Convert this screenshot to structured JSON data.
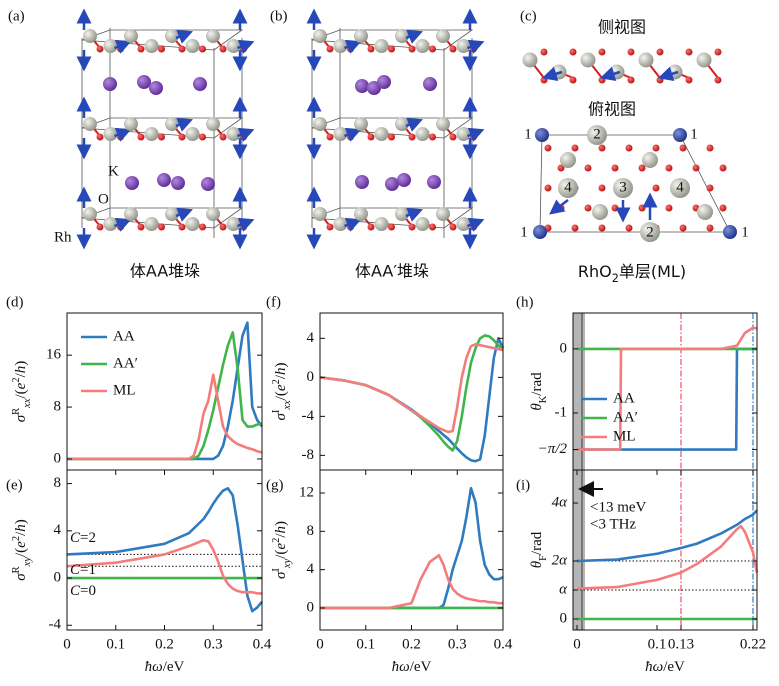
{
  "structures": {
    "a": {
      "label": "(a)",
      "caption": "体AA堆垛",
      "atoms": [
        "K",
        "O",
        "Rh"
      ]
    },
    "b": {
      "label": "(b)",
      "caption": "体AA′堆垛"
    },
    "c": {
      "label": "(c)",
      "caption": [
        {
          "text": "RhO"
        },
        {
          "text": "2",
          "style": "sub"
        },
        {
          "text": "单层(ML)"
        }
      ],
      "side_view": "侧视图",
      "top_view": "俯视图",
      "sites": [
        "1",
        "2",
        "1",
        "4",
        "3",
        "4",
        "1",
        "2",
        "1"
      ]
    }
  },
  "chart_data": [
    {
      "type": "line",
      "label": "(d)",
      "legend": "upper left",
      "ylabel": [
        {
          "text": "σ",
          "style": "i"
        },
        {
          "text": "R",
          "style": "sup"
        },
        {
          "text": "xx",
          "style": "subi"
        },
        {
          "text": "/("
        },
        {
          "text": "e",
          "style": "i"
        },
        {
          "text": "2",
          "style": "sup"
        },
        {
          "text": "/"
        },
        {
          "text": "h",
          "style": "i"
        },
        {
          "text": ")"
        }
      ],
      "x": [
        0,
        0.1,
        0.2,
        0.24,
        0.25,
        0.26,
        0.27,
        0.28,
        0.29,
        0.3,
        0.31,
        0.32,
        0.33,
        0.34,
        0.35,
        0.36,
        0.37,
        0.38,
        0.39,
        0.4
      ],
      "xlim": [
        0,
        0.4
      ],
      "ylim": [
        -1.7,
        22.5
      ],
      "yticks": [
        0,
        8,
        16
      ],
      "series": [
        {
          "name": "AA",
          "color": "#2f7bbf",
          "values": [
            0,
            0,
            0,
            0,
            0,
            0,
            0,
            0,
            0,
            0,
            0.5,
            2,
            5,
            9,
            14,
            19,
            21,
            8,
            6,
            5
          ]
        },
        {
          "name": "AA′",
          "color": "#3fb54a",
          "values": [
            0,
            0,
            0,
            0,
            0,
            0,
            0.5,
            2,
            4.5,
            7.5,
            11,
            14.5,
            17.5,
            19.5,
            14,
            6,
            5,
            5,
            5.3,
            5.5
          ]
        },
        {
          "name": "ML",
          "color": "#f47c7c",
          "values": [
            0,
            0,
            0,
            0,
            0,
            0.5,
            3,
            7,
            9,
            13,
            9,
            5,
            3.5,
            2.8,
            2.3,
            2,
            1.7,
            1.5,
            1.2,
            1
          ]
        }
      ]
    },
    {
      "type": "line",
      "label": "(e)",
      "ylabel": [
        {
          "text": "σ",
          "style": "i"
        },
        {
          "text": "R",
          "style": "sup"
        },
        {
          "text": "xy",
          "style": "subi"
        },
        {
          "text": "/("
        },
        {
          "text": "e",
          "style": "i"
        },
        {
          "text": "2",
          "style": "sup"
        },
        {
          "text": "/"
        },
        {
          "text": "h",
          "style": "i"
        },
        {
          "text": ")"
        }
      ],
      "xlabel": [
        {
          "text": "ħω",
          "style": "i"
        },
        {
          "text": "/eV"
        }
      ],
      "x": [
        0,
        0.1,
        0.2,
        0.25,
        0.28,
        0.29,
        0.3,
        0.31,
        0.32,
        0.33,
        0.34,
        0.35,
        0.36,
        0.37,
        0.38,
        0.39,
        0.4
      ],
      "xlim": [
        0,
        0.4
      ],
      "ylim": [
        -4.4,
        9.15
      ],
      "xticks": [
        0,
        0.1,
        0.2,
        0.3,
        0.4
      ],
      "yticks": [
        -4,
        0,
        4,
        8
      ],
      "hlines": [
        2,
        1
      ],
      "annotations": [
        {
          "text": [
            {
              "text": "C",
              "style": "i"
            },
            {
              "text": "=2"
            }
          ],
          "color": "#2f7bbf"
        },
        {
          "text": [
            {
              "text": "C",
              "style": "i"
            },
            {
              "text": "=1"
            }
          ],
          "color": "#f47c7c"
        },
        {
          "text": [
            {
              "text": "C",
              "style": "i"
            },
            {
              "text": "=0"
            }
          ],
          "color": "#3fb54a"
        }
      ],
      "series": [
        {
          "color": "#2f7bbf",
          "values": [
            2,
            2.2,
            2.9,
            3.8,
            5,
            5.6,
            6.3,
            6.9,
            7.4,
            7.6,
            7,
            4.5,
            1.5,
            -1.5,
            -2.8,
            -2.5,
            -2
          ]
        },
        {
          "color": "#3fb54a",
          "values": [
            0,
            0,
            0,
            0,
            0,
            0,
            0,
            0,
            0,
            0,
            0,
            0,
            0,
            0,
            0,
            0,
            0
          ]
        },
        {
          "color": "#f47c7c",
          "values": [
            1,
            1.3,
            2,
            2.7,
            3.2,
            3.1,
            2.4,
            1.4,
            0.2,
            -0.5,
            -0.9,
            -1.1,
            -1.2,
            -1.2,
            -1.2,
            -1.3,
            -1.3
          ]
        }
      ]
    },
    {
      "type": "line",
      "label": "(f)",
      "ylabel": [
        {
          "text": "σ",
          "style": "i"
        },
        {
          "text": "I",
          "style": "sup"
        },
        {
          "text": "xx",
          "style": "subi"
        },
        {
          "text": "/("
        },
        {
          "text": "e",
          "style": "i"
        },
        {
          "text": "2",
          "style": "sup"
        },
        {
          "text": "/"
        },
        {
          "text": "h",
          "style": "i"
        },
        {
          "text": ")"
        }
      ],
      "x": [
        0,
        0.05,
        0.1,
        0.15,
        0.2,
        0.22,
        0.24,
        0.26,
        0.27,
        0.28,
        0.29,
        0.3,
        0.31,
        0.32,
        0.33,
        0.34,
        0.35,
        0.36,
        0.37,
        0.38,
        0.39,
        0.4
      ],
      "xlim": [
        0,
        0.4
      ],
      "ylim": [
        -9.5,
        6.6
      ],
      "yticks": [
        -8,
        -4,
        0,
        4
      ],
      "series": [
        {
          "color": "#2f7bbf",
          "values": [
            0,
            -0.3,
            -0.8,
            -1.8,
            -3.3,
            -4,
            -4.7,
            -5.5,
            -5.9,
            -6.3,
            -6.8,
            -7.3,
            -7.8,
            -8.2,
            -8.5,
            -8.6,
            -8.4,
            -6,
            -2,
            2,
            4,
            3
          ]
        },
        {
          "color": "#3fb54a",
          "values": [
            0,
            -0.3,
            -0.8,
            -1.8,
            -3.4,
            -4.1,
            -5,
            -6,
            -6.6,
            -7.1,
            -7.5,
            -6.5,
            -4,
            -1,
            1.5,
            3,
            4,
            4.3,
            4.2,
            3.8,
            3.3,
            2.8
          ]
        },
        {
          "color": "#f47c7c",
          "values": [
            0,
            -0.3,
            -0.8,
            -1.8,
            -3.4,
            -4,
            -4.6,
            -5.2,
            -5.4,
            -5.6,
            -5.5,
            -3,
            0,
            2,
            3.2,
            3.4,
            3.3,
            3.2,
            3.1,
            3,
            2.9,
            2.8
          ]
        }
      ]
    },
    {
      "type": "line",
      "label": "(g)",
      "ylabel": [
        {
          "text": "σ",
          "style": "i"
        },
        {
          "text": "I",
          "style": "sup"
        },
        {
          "text": "xy",
          "style": "subi"
        },
        {
          "text": "/("
        },
        {
          "text": "e",
          "style": "i"
        },
        {
          "text": "2",
          "style": "sup"
        },
        {
          "text": "/"
        },
        {
          "text": "h",
          "style": "i"
        },
        {
          "text": ")"
        }
      ],
      "xlabel": [
        {
          "text": "ħω",
          "style": "i"
        },
        {
          "text": "/eV"
        }
      ],
      "x": [
        0,
        0.05,
        0.1,
        0.15,
        0.2,
        0.22,
        0.24,
        0.26,
        0.27,
        0.28,
        0.29,
        0.3,
        0.31,
        0.32,
        0.33,
        0.34,
        0.35,
        0.36,
        0.37,
        0.38,
        0.39,
        0.4
      ],
      "xlim": [
        0,
        0.4
      ],
      "ylim": [
        -2.3,
        14.4
      ],
      "xticks": [
        0,
        0.1,
        0.2,
        0.3,
        0.4
      ],
      "yticks": [
        0,
        4,
        8,
        12
      ],
      "series": [
        {
          "color": "#2f7bbf",
          "values": [
            0,
            0,
            0,
            0,
            0,
            0,
            0,
            0,
            0.3,
            2,
            4,
            5.5,
            7,
            9.5,
            12.5,
            11,
            7,
            4.5,
            3.5,
            3,
            3,
            3.2
          ]
        },
        {
          "color": "#3fb54a",
          "values": [
            0,
            0,
            0,
            0,
            0,
            0,
            0,
            0,
            0,
            0,
            0,
            0,
            0,
            0,
            0,
            0,
            0,
            0,
            0,
            0,
            0,
            0
          ]
        },
        {
          "color": "#f47c7c",
          "values": [
            0,
            0,
            0,
            0,
            0.5,
            3,
            4.8,
            5.5,
            4.5,
            3,
            2,
            1.5,
            1.2,
            1,
            0.9,
            0.8,
            0.7,
            0.7,
            0.6,
            0.6,
            0.5,
            0.5
          ]
        }
      ]
    },
    {
      "type": "line",
      "label": "(h)",
      "legend": "center left",
      "ylabel": [
        {
          "text": "θ",
          "style": "i"
        },
        {
          "text": "K",
          "style": "sub"
        },
        {
          "text": "/rad"
        }
      ],
      "xlim": [
        -0.005,
        0.225
      ],
      "ylim": [
        -1.89,
        0.56
      ],
      "yticks": [
        {
          "value": -1.5708,
          "label": "−π/2"
        },
        -1,
        0
      ],
      "shade_to": 0.01,
      "vlines": [
        {
          "value": 0.13,
          "color": "#f0506a"
        },
        {
          "value": 0.22,
          "color": "#2f7bbf"
        }
      ],
      "series": [
        {
          "name": "AA",
          "color": "#2f7bbf",
          "x": [
            0,
            0.199,
            0.2,
            0.225
          ],
          "values": [
            -1.5708,
            -1.5708,
            0,
            0
          ]
        },
        {
          "name": "AA′",
          "color": "#3fb54a",
          "x": [
            0,
            0.225
          ],
          "values": [
            0,
            0
          ]
        },
        {
          "name": "ML",
          "color": "#f47c7c",
          "x": [
            0,
            0.054,
            0.055,
            0.18,
            0.2,
            0.21,
            0.22,
            0.225
          ],
          "values": [
            -1.5708,
            -1.5708,
            0,
            0,
            0.05,
            0.25,
            0.33,
            0.32
          ]
        }
      ]
    },
    {
      "type": "line",
      "label": "(i)",
      "ylabel": [
        {
          "text": "θ",
          "style": "i"
        },
        {
          "text": "F",
          "style": "sub"
        },
        {
          "text": "/rad"
        }
      ],
      "xlabel": [
        {
          "text": "ħω",
          "style": "i"
        },
        {
          "text": "/eV"
        }
      ],
      "x": [
        0,
        0.05,
        0.1,
        0.13,
        0.15,
        0.18,
        0.2,
        0.205,
        0.21,
        0.22,
        0.225
      ],
      "xlim": [
        -0.005,
        0.225
      ],
      "ylim": [
        -0.38,
        5.14
      ],
      "xticks": [
        0,
        0.1,
        0.13,
        0.22
      ],
      "yticks": [
        0,
        {
          "value": 1,
          "label": "α"
        },
        {
          "value": 2,
          "label": "2α"
        },
        {
          "value": 4,
          "label": "4α"
        }
      ],
      "shade_to": 0.01,
      "hlines": [
        2,
        1
      ],
      "vlines": [
        {
          "value": 0.13,
          "color": "#f0506a"
        },
        {
          "value": 0.22,
          "color": "#2f7bbf"
        }
      ],
      "annotations": [
        {
          "text": "<13 meV"
        },
        {
          "text": "<3 THz"
        }
      ],
      "series": [
        {
          "color": "#2f7bbf",
          "values": [
            2,
            2.05,
            2.25,
            2.45,
            2.6,
            2.95,
            3.25,
            3.35,
            3.45,
            3.6,
            3.75
          ]
        },
        {
          "color": "#3fb54a",
          "values": [
            0,
            0,
            0,
            0,
            0,
            0,
            0,
            0,
            0,
            0,
            0
          ]
        },
        {
          "color": "#f47c7c",
          "values": [
            1.05,
            1.1,
            1.35,
            1.6,
            1.9,
            2.5,
            3.1,
            3.2,
            3,
            2.3,
            1.6
          ]
        }
      ]
    }
  ]
}
